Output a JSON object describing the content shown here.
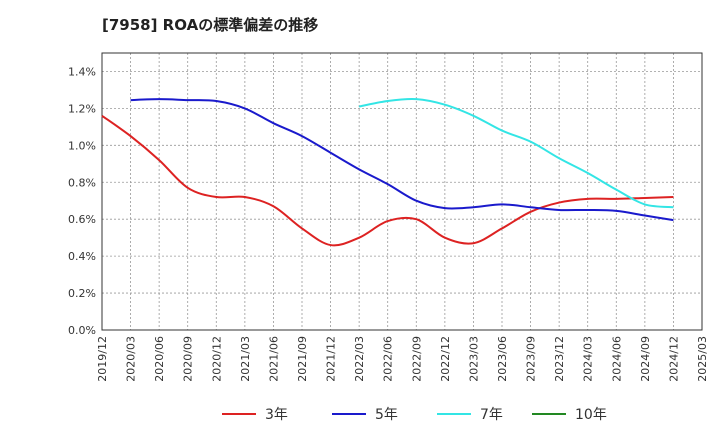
{
  "chart_data": {
    "type": "line",
    "title": "[7958]  ROAの標準偏差の推移",
    "x": [
      "2019/12",
      "2020/03",
      "2020/06",
      "2020/09",
      "2020/12",
      "2021/03",
      "2021/06",
      "2021/09",
      "2021/12",
      "2022/03",
      "2022/06",
      "2022/09",
      "2022/12",
      "2023/03",
      "2023/06",
      "2023/09",
      "2023/12",
      "2024/03",
      "2024/06",
      "2024/09",
      "2024/12",
      "2025/03"
    ],
    "yticks": [
      "0.0%",
      "0.2%",
      "0.4%",
      "0.6%",
      "0.8%",
      "1.0%",
      "1.2%",
      "1.4%"
    ],
    "ylim": [
      0,
      1.5
    ],
    "grid": true,
    "legend_position": "bottom",
    "series": [
      {
        "name": "3年",
        "color": "#dd2222",
        "values": [
          1.16,
          1.05,
          0.92,
          0.77,
          0.72,
          0.72,
          0.67,
          0.55,
          0.46,
          0.5,
          0.59,
          0.6,
          0.5,
          0.47,
          0.55,
          0.64,
          0.69,
          0.71,
          0.71,
          0.715,
          0.72,
          null
        ]
      },
      {
        "name": "5年",
        "color": "#1a1acc",
        "values": [
          null,
          1.245,
          1.25,
          1.245,
          1.24,
          1.2,
          1.12,
          1.05,
          0.96,
          0.87,
          0.79,
          0.7,
          0.66,
          0.665,
          0.68,
          0.665,
          0.65,
          0.65,
          0.645,
          0.62,
          0.595,
          null
        ]
      },
      {
        "name": "7年",
        "color": "#33e5e5",
        "values": [
          null,
          null,
          null,
          null,
          null,
          null,
          null,
          null,
          null,
          1.21,
          1.24,
          1.25,
          1.22,
          1.16,
          1.08,
          1.02,
          0.93,
          0.85,
          0.76,
          0.68,
          0.665,
          null
        ]
      },
      {
        "name": "10年",
        "color": "#228822",
        "values": [
          null,
          null,
          null,
          null,
          null,
          null,
          null,
          null,
          null,
          null,
          null,
          null,
          null,
          null,
          null,
          null,
          null,
          null,
          null,
          null,
          null,
          null
        ]
      }
    ]
  }
}
